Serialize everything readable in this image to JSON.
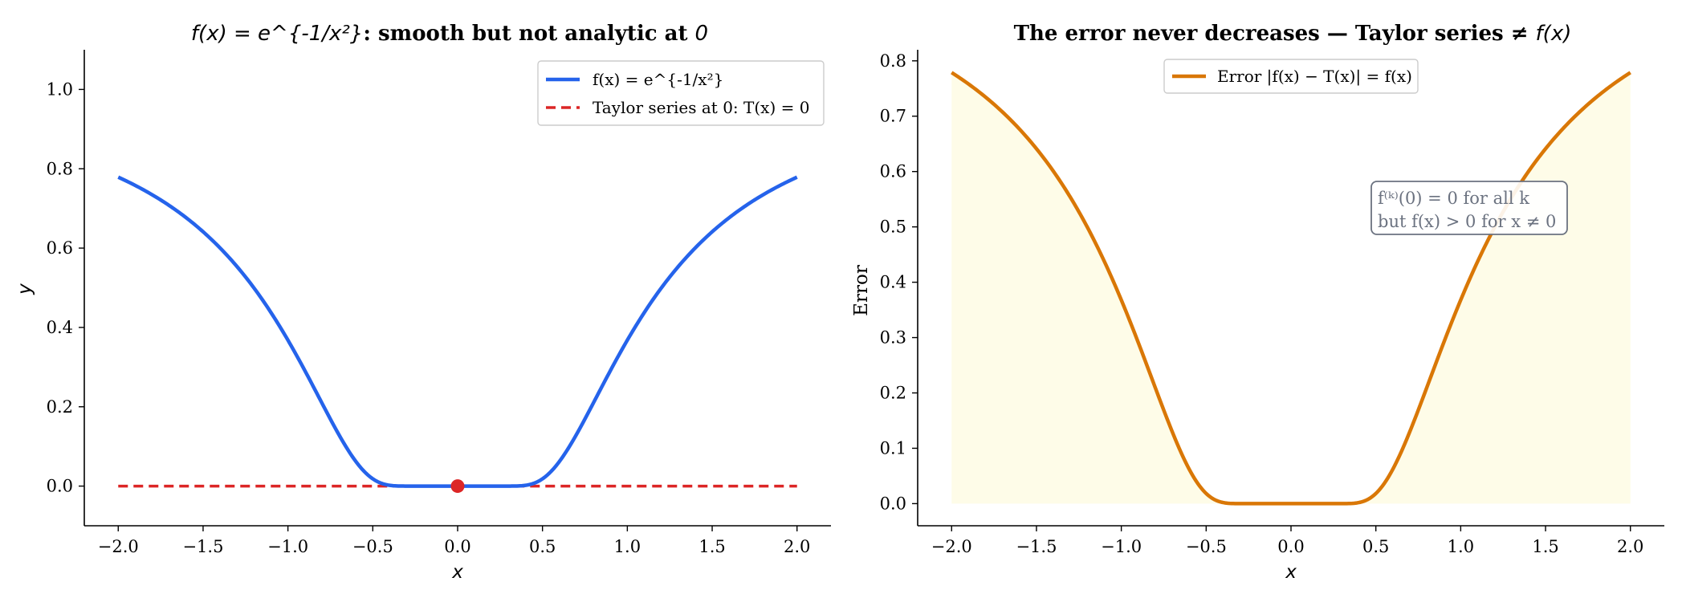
{
  "charts": [
    {
      "title_math": "f(x) = e^{-1/x²}",
      "title_text": ": smooth but not analytic at ",
      "title_zero": "0",
      "xlabel": "x",
      "ylabel": "y",
      "legend": [
        {
          "label": "f(x) = e^{-1/x²}",
          "style": "solid",
          "color": "#2563eb"
        },
        {
          "label": "Taylor series at 0: T(x) = 0",
          "style": "dashed",
          "color": "#dc2626"
        }
      ]
    },
    {
      "title_text": "The error never decreases — Taylor series ≠ ",
      "title_math": "f(x)",
      "xlabel": "x",
      "ylabel": "Error",
      "legend": [
        {
          "label": "Error |f(x) − T(x)| = f(x)",
          "style": "solid",
          "color": "#d97706"
        }
      ],
      "annotation": [
        "f⁽ᵏ⁾(0) = 0 for all k",
        "but f(x) > 0 for x ≠ 0"
      ]
    }
  ],
  "chart_data": [
    {
      "type": "line",
      "x_range": [
        -2.0,
        2.0
      ],
      "xlim": [
        -2.2,
        2.2
      ],
      "ylim": [
        -0.1,
        1.1
      ],
      "xticks": [
        "−2.0",
        "−1.5",
        "−1.0",
        "−0.5",
        "0.0",
        "0.5",
        "1.0",
        "1.5",
        "2.0"
      ],
      "yticks": [
        "0.0",
        "0.2",
        "0.4",
        "0.6",
        "0.8",
        "1.0"
      ],
      "series": [
        {
          "name": "f(x) = e^{-1/x²}",
          "function": "exp(-1/x^2)",
          "color": "#2563eb"
        },
        {
          "name": "Taylor series at 0: T(x) = 0",
          "function": "0",
          "color": "#dc2626",
          "dashed": true
        }
      ],
      "marker": {
        "x": 0.0,
        "y": 0.0,
        "color": "#dc2626"
      }
    },
    {
      "type": "area",
      "x_range": [
        -2.0,
        2.0
      ],
      "xlim": [
        -2.2,
        2.2
      ],
      "ylim": [
        -0.04,
        0.82
      ],
      "xticks": [
        "−2.0",
        "−1.5",
        "−1.0",
        "−0.5",
        "0.0",
        "0.5",
        "1.0",
        "1.5",
        "2.0"
      ],
      "yticks": [
        "0.0",
        "0.1",
        "0.2",
        "0.3",
        "0.4",
        "0.5",
        "0.6",
        "0.7",
        "0.8"
      ],
      "series": [
        {
          "name": "Error |f(x) − T(x)| = f(x)",
          "function": "exp(-1/x^2)",
          "color": "#d97706"
        }
      ],
      "fill_color": "#fefce8"
    }
  ]
}
